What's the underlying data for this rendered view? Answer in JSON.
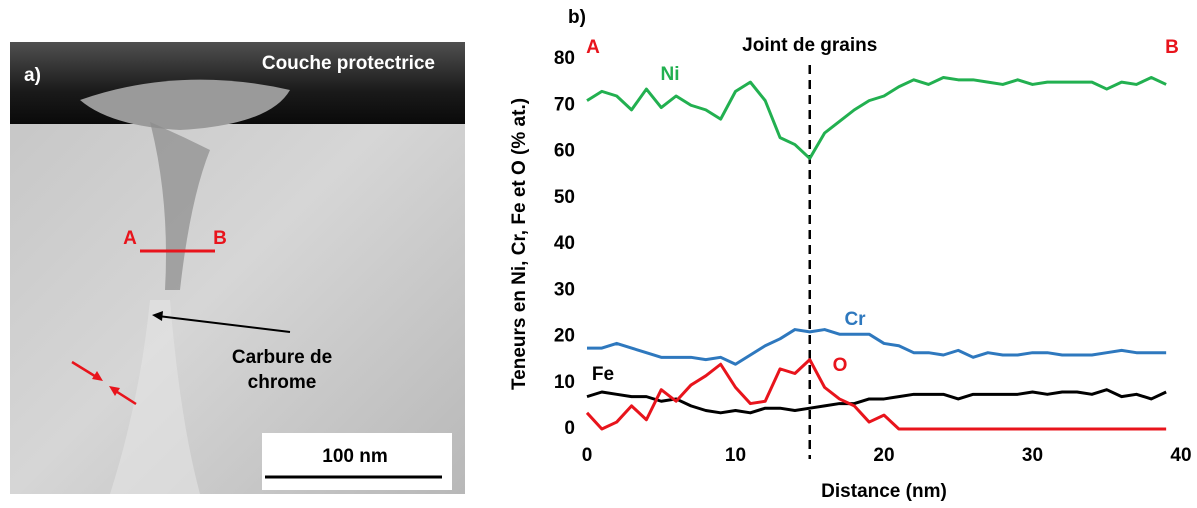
{
  "panel_a": {
    "label": "a)",
    "layer": "Couche protectrice",
    "point_a": "A",
    "point_b": "B",
    "annotation": [
      "Carbure de",
      "chrome"
    ],
    "scale_bar": "100 nm"
  },
  "chart_data": {
    "type": "line",
    "panel_label": "b)",
    "point_a": "A",
    "point_b": "B",
    "annotation_line": {
      "x": 15,
      "label": "Joint de grains"
    },
    "xlabel": "Distance (nm)",
    "ylabel": "Teneurs en Ni, Cr, Fe et O (% at.)",
    "xlim": [
      0,
      40
    ],
    "xticks": [
      0,
      10,
      20,
      30,
      40
    ],
    "ylim": [
      0,
      80
    ],
    "yticks": [
      0,
      10,
      20,
      30,
      40,
      50,
      60,
      70,
      80
    ],
    "x": [
      0,
      1,
      2,
      3,
      4,
      5,
      6,
      7,
      8,
      9,
      10,
      11,
      12,
      13,
      14,
      15,
      16,
      17,
      18,
      19,
      20,
      21,
      22,
      23,
      24,
      25,
      26,
      27,
      28,
      29,
      30,
      31,
      32,
      33,
      34,
      35,
      36,
      37,
      38,
      39
    ],
    "series": [
      {
        "name": "Ni",
        "color": "#22b050",
        "values": [
          71,
          73,
          72,
          69,
          73.5,
          69.5,
          72,
          70,
          69,
          67,
          73,
          75,
          71,
          63,
          61.5,
          58.5,
          64,
          66.5,
          69,
          71,
          72,
          74,
          75.5,
          74.5,
          76,
          75.5,
          75.5,
          75,
          74.5,
          75.5,
          74.5,
          75,
          75,
          75,
          75,
          73.5,
          75,
          74.5,
          76,
          74.5
        ]
      },
      {
        "name": "Cr",
        "color": "#2e78be",
        "values": [
          17.5,
          17.5,
          18.5,
          17.5,
          16.5,
          15.5,
          15.5,
          15.5,
          15,
          15.5,
          14,
          16,
          18,
          19.5,
          21.5,
          21,
          21.5,
          20.5,
          20.5,
          20.5,
          18.5,
          18,
          16.5,
          16.5,
          16,
          17,
          15.5,
          16.5,
          16,
          16,
          16.5,
          16.5,
          16,
          16,
          16,
          16.5,
          17,
          16.5,
          16.5,
          16.5
        ]
      },
      {
        "name": "Fe",
        "color": "#000000",
        "values": [
          7,
          8,
          7.5,
          7,
          7,
          6,
          6.5,
          5,
          4,
          3.5,
          4,
          3.5,
          4.5,
          4.5,
          4,
          4.5,
          5,
          5.5,
          5.5,
          6.5,
          6.5,
          7,
          7.5,
          7.5,
          7.5,
          6.5,
          7.5,
          7.5,
          7.5,
          7.5,
          8,
          7.5,
          8,
          8,
          7.5,
          8.5,
          7,
          7.5,
          6.5,
          8
        ]
      },
      {
        "name": "O",
        "color": "#e8141c",
        "values": [
          3.5,
          0,
          1.5,
          5,
          2,
          8.5,
          6,
          9.5,
          11.5,
          14,
          9,
          5.5,
          6,
          13,
          12,
          15,
          9,
          6.5,
          5,
          1.5,
          3,
          0,
          0,
          0,
          0,
          0,
          0,
          0,
          0,
          0,
          0,
          0,
          0,
          0,
          0,
          0,
          0,
          0,
          0,
          0
        ]
      }
    ]
  }
}
